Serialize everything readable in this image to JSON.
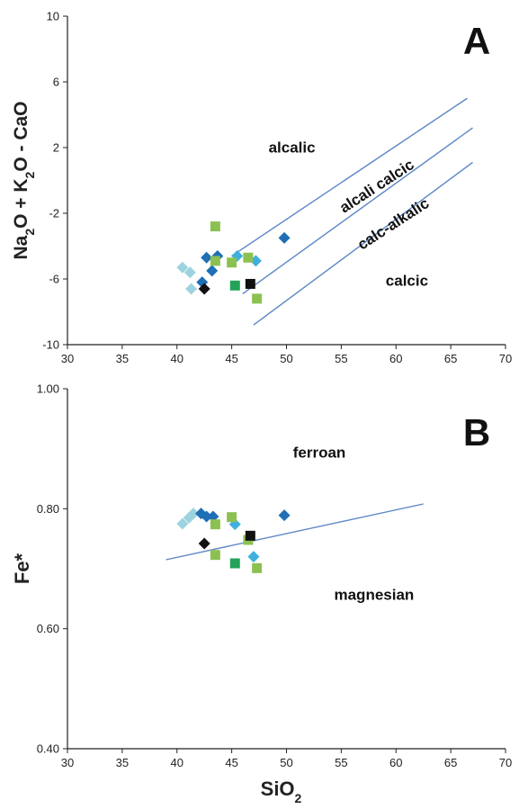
{
  "chart_data": [
    {
      "type": "scatter",
      "panel": "A",
      "xlim": [
        30,
        70
      ],
      "ylim": [
        -10,
        10
      ],
      "xticks": [
        30,
        35,
        40,
        45,
        50,
        55,
        60,
        65,
        70
      ],
      "yticks": [
        10,
        6,
        2,
        -2,
        -6,
        -10
      ],
      "xtick_labels": [
        "30",
        "35",
        "40",
        "45",
        "50",
        "55",
        "60",
        "65",
        "70"
      ],
      "ytick_labels": [
        "10",
        "6",
        "2",
        "-2",
        "-6",
        "-10"
      ],
      "ylabel_parts": [
        "Na",
        "2",
        "O + K",
        "2",
        "O - CaO"
      ],
      "regions": [
        {
          "label": "alcalic",
          "x": 50.5,
          "y": 1.7,
          "rotate": 0
        },
        {
          "label": "alcali calcic",
          "x": 58.5,
          "y": -0.6,
          "rotate": -33
        },
        {
          "label": "calc-alkalic",
          "x": 60.0,
          "y": -2.9,
          "rotate": -33
        },
        {
          "label": "calcic",
          "x": 61.0,
          "y": -6.4,
          "rotate": 0
        }
      ],
      "boundary_lines": [
        {
          "x": [
            45.0,
            66.5
          ],
          "y": [
            -4.6,
            5.0
          ]
        },
        {
          "x": [
            46.0,
            67.0
          ],
          "y": [
            -6.9,
            3.2
          ]
        },
        {
          "x": [
            47.0,
            67.0
          ],
          "y": [
            -8.8,
            1.1
          ]
        }
      ],
      "points": [
        {
          "x": 40.5,
          "y": -5.3,
          "marker": "diamond",
          "color": "#9dd3e0"
        },
        {
          "x": 41.2,
          "y": -5.6,
          "marker": "diamond",
          "color": "#9dd3e0"
        },
        {
          "x": 41.3,
          "y": -6.6,
          "marker": "diamond",
          "color": "#9dd3e0"
        },
        {
          "x": 42.3,
          "y": -6.2,
          "marker": "diamond",
          "color": "#1f6fb5"
        },
        {
          "x": 42.7,
          "y": -4.7,
          "marker": "diamond",
          "color": "#1f6fb5"
        },
        {
          "x": 43.2,
          "y": -5.5,
          "marker": "diamond",
          "color": "#1f6fb5"
        },
        {
          "x": 43.7,
          "y": -4.6,
          "marker": "diamond",
          "color": "#1f6fb5"
        },
        {
          "x": 49.8,
          "y": -3.5,
          "marker": "diamond",
          "color": "#1f6fb5"
        },
        {
          "x": 45.5,
          "y": -4.6,
          "marker": "diamond",
          "color": "#3fb0de"
        },
        {
          "x": 47.2,
          "y": -4.9,
          "marker": "diamond",
          "color": "#3fb0de"
        },
        {
          "x": 42.5,
          "y": -6.6,
          "marker": "diamond",
          "color": "#111111"
        },
        {
          "x": 43.5,
          "y": -2.8,
          "marker": "square",
          "color": "#8cc152"
        },
        {
          "x": 43.5,
          "y": -4.9,
          "marker": "square",
          "color": "#8cc152"
        },
        {
          "x": 45.0,
          "y": -5.0,
          "marker": "square",
          "color": "#8cc152"
        },
        {
          "x": 46.5,
          "y": -4.7,
          "marker": "square",
          "color": "#8cc152"
        },
        {
          "x": 47.3,
          "y": -7.2,
          "marker": "square",
          "color": "#8cc152"
        },
        {
          "x": 45.3,
          "y": -6.4,
          "marker": "square",
          "color": "#23a35a"
        },
        {
          "x": 46.7,
          "y": -6.3,
          "marker": "square",
          "color": "#111111"
        }
      ]
    },
    {
      "type": "scatter",
      "panel": "B",
      "xlim": [
        30,
        70
      ],
      "ylim": [
        0.4,
        1.0
      ],
      "xticks": [
        30,
        35,
        40,
        45,
        50,
        55,
        60,
        65,
        70
      ],
      "yticks": [
        1.0,
        0.8,
        0.6,
        0.4
      ],
      "xtick_labels": [
        "30",
        "35",
        "40",
        "45",
        "50",
        "55",
        "60",
        "65",
        "70"
      ],
      "ytick_labels": [
        "1.00",
        "0.80",
        "0.60",
        "0.40"
      ],
      "ylabel_parts": [
        "Fe*"
      ],
      "xlabel_parts": [
        "SiO",
        "2"
      ],
      "regions": [
        {
          "label": "ferroan",
          "x": 53.0,
          "y": 0.885,
          "rotate": 0
        },
        {
          "label": "magnesian",
          "x": 58.0,
          "y": 0.648,
          "rotate": 0
        }
      ],
      "boundary_lines": [
        {
          "x": [
            39.0,
            62.5
          ],
          "y": [
            0.715,
            0.808
          ]
        }
      ],
      "points": [
        {
          "x": 40.5,
          "y": 0.775,
          "marker": "diamond",
          "color": "#9dd3e0"
        },
        {
          "x": 41.1,
          "y": 0.785,
          "marker": "diamond",
          "color": "#9dd3e0"
        },
        {
          "x": 41.5,
          "y": 0.792,
          "marker": "diamond",
          "color": "#9dd3e0"
        },
        {
          "x": 42.2,
          "y": 0.792,
          "marker": "diamond",
          "color": "#1f6fb5"
        },
        {
          "x": 42.7,
          "y": 0.787,
          "marker": "diamond",
          "color": "#1f6fb5"
        },
        {
          "x": 43.3,
          "y": 0.787,
          "marker": "diamond",
          "color": "#1f6fb5"
        },
        {
          "x": 49.8,
          "y": 0.789,
          "marker": "diamond",
          "color": "#1f6fb5"
        },
        {
          "x": 45.3,
          "y": 0.774,
          "marker": "diamond",
          "color": "#3fb0de"
        },
        {
          "x": 47.0,
          "y": 0.72,
          "marker": "diamond",
          "color": "#3fb0de"
        },
        {
          "x": 42.5,
          "y": 0.742,
          "marker": "diamond",
          "color": "#111111"
        },
        {
          "x": 43.5,
          "y": 0.774,
          "marker": "square",
          "color": "#8cc152"
        },
        {
          "x": 45.0,
          "y": 0.786,
          "marker": "square",
          "color": "#8cc152"
        },
        {
          "x": 43.5,
          "y": 0.723,
          "marker": "square",
          "color": "#8cc152"
        },
        {
          "x": 46.5,
          "y": 0.748,
          "marker": "square",
          "color": "#8cc152"
        },
        {
          "x": 47.3,
          "y": 0.701,
          "marker": "square",
          "color": "#8cc152"
        },
        {
          "x": 45.3,
          "y": 0.709,
          "marker": "square",
          "color": "#23a35a"
        },
        {
          "x": 46.7,
          "y": 0.755,
          "marker": "square",
          "color": "#111111"
        }
      ]
    }
  ],
  "style": {
    "line_color": "#5b86c5",
    "axis_color": "#222222"
  }
}
